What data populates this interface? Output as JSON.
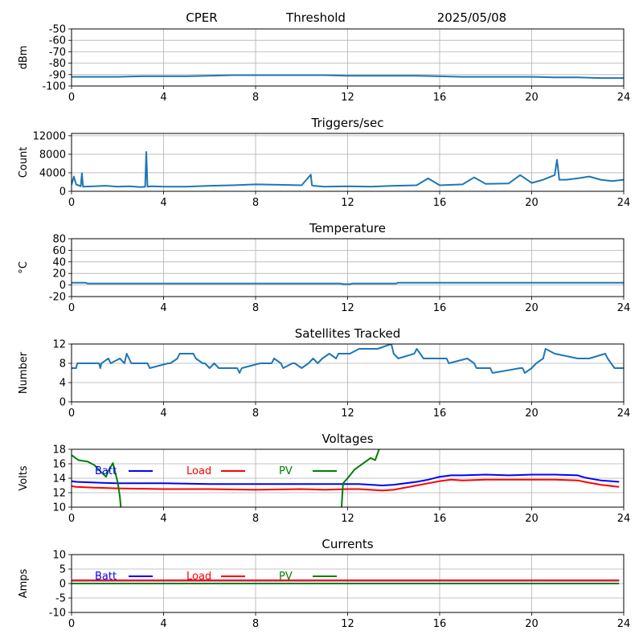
{
  "header": {
    "site": "CPER",
    "mode": "Threshold",
    "date": "2025/05/08"
  },
  "x_ticks": [
    "0",
    "4",
    "8",
    "12",
    "16",
    "20",
    "24"
  ],
  "chart_data": [
    {
      "type": "line",
      "id": "threshold",
      "title": "",
      "xlabel": "",
      "ylabel": "dBm",
      "xlim": [
        0,
        24
      ],
      "ylim": [
        -100,
        -50
      ],
      "grid": true,
      "yticks": [
        -50,
        -60,
        -70,
        -80,
        -90,
        -100
      ],
      "series": [
        {
          "color": "#1f77b4",
          "x": [
            0,
            1,
            2,
            3,
            4,
            5,
            6,
            7,
            8,
            9,
            10,
            11,
            12,
            13,
            14,
            15,
            16,
            17,
            18,
            19,
            20,
            21,
            22,
            23,
            24
          ],
          "y": [
            -92,
            -92,
            -92,
            -91.5,
            -91.5,
            -91.5,
            -91,
            -90.5,
            -90.5,
            -90.5,
            -90.5,
            -90.5,
            -91,
            -91,
            -91,
            -91,
            -91.5,
            -92,
            -92,
            -92,
            -92,
            -92.5,
            -92.5,
            -93,
            -93
          ]
        }
      ]
    },
    {
      "type": "line",
      "id": "triggers",
      "title": "Triggers/sec",
      "xlabel": "",
      "ylabel": "Count",
      "xlim": [
        0,
        24
      ],
      "ylim": [
        0,
        12500
      ],
      "grid": true,
      "yticks": [
        0,
        4000,
        8000,
        12000
      ],
      "series": [
        {
          "color": "#1f77b4",
          "x": [
            0,
            0.1,
            0.2,
            0.4,
            0.45,
            0.5,
            1,
            1.5,
            2,
            2.5,
            3,
            3.2,
            3.25,
            3.3,
            3.5,
            4,
            5,
            6,
            7,
            8,
            9,
            10,
            10.4,
            10.45,
            10.5,
            11,
            12,
            13,
            14,
            15,
            15.5,
            16,
            17,
            17.5,
            18,
            19,
            19.5,
            20,
            20.5,
            21,
            21.1,
            21.2,
            21.5,
            22,
            22.5,
            23,
            23.5,
            24
          ],
          "y": [
            1400,
            3200,
            1500,
            1100,
            3900,
            1000,
            1100,
            1200,
            1000,
            1100,
            900,
            1000,
            8500,
            1000,
            1100,
            1000,
            1000,
            1200,
            1300,
            1500,
            1400,
            1300,
            3600,
            1300,
            1200,
            1000,
            1100,
            1000,
            1200,
            1300,
            2800,
            1300,
            1500,
            3000,
            1600,
            1700,
            3500,
            1800,
            2500,
            3500,
            6800,
            2500,
            2500,
            2800,
            3200,
            2500,
            2200,
            2500
          ]
        }
      ]
    },
    {
      "type": "line",
      "id": "temperature",
      "title": "Temperature",
      "xlabel": "",
      "ylabel": "°C",
      "xlim": [
        0,
        24
      ],
      "ylim": [
        -20,
        80
      ],
      "grid": true,
      "yticks": [
        -20,
        0,
        20,
        40,
        60,
        80
      ],
      "series": [
        {
          "color": "#1f77b4",
          "x": [
            0,
            0.6,
            0.7,
            11.7,
            11.8,
            12.1,
            12.2,
            14.1,
            14.2,
            24
          ],
          "y": [
            4,
            4,
            2.5,
            2.5,
            1.5,
            1.5,
            2.5,
            2.5,
            4,
            4
          ]
        }
      ]
    },
    {
      "type": "line",
      "id": "satellites",
      "title": "Satellites Tracked",
      "xlabel": "",
      "ylabel": "Number",
      "xlim": [
        0,
        24
      ],
      "ylim": [
        0,
        12
      ],
      "grid": true,
      "yticks": [
        0,
        4,
        8,
        12
      ],
      "series": [
        {
          "color": "#1f77b4",
          "x": [
            0,
            0.2,
            0.25,
            1.2,
            1.25,
            1.3,
            1.6,
            1.7,
            2.1,
            2.3,
            2.4,
            2.6,
            3.3,
            3.4,
            4.2,
            4.3,
            4.6,
            4.7,
            5.3,
            5.4,
            5.7,
            5.8,
            6,
            6.2,
            6.4,
            7.2,
            7.3,
            7.4,
            8.2,
            8.7,
            8.8,
            9.1,
            9.2,
            9.6,
            9.7,
            10,
            10.3,
            10.5,
            10.7,
            10.9,
            11.2,
            11.5,
            11.6,
            12.1,
            12.5,
            13.3,
            13.9,
            14,
            14.2,
            14.9,
            15,
            15.3,
            16.3,
            16.4,
            17.2,
            17.5,
            17.6,
            18.2,
            18.3,
            19.5,
            19.6,
            19.7,
            20,
            20.2,
            20.5,
            20.6,
            21,
            22,
            22.5,
            23.2,
            23.3,
            23.6,
            24
          ],
          "y": [
            7,
            7,
            8,
            8,
            7,
            8,
            9,
            8,
            9,
            8,
            10,
            8,
            8,
            7,
            8,
            8,
            9,
            10,
            10,
            9,
            8,
            8,
            7,
            8,
            7,
            7,
            6,
            7,
            8,
            8,
            9,
            8,
            7,
            8,
            8,
            7,
            8,
            9,
            8,
            9,
            10,
            9,
            10,
            10,
            11,
            11,
            12,
            10,
            9,
            10,
            11,
            9,
            9,
            8,
            9,
            8,
            7,
            7,
            6,
            7,
            7,
            6,
            7,
            8,
            9,
            11,
            10,
            9,
            9,
            10,
            9,
            7,
            7
          ]
        }
      ]
    },
    {
      "type": "line",
      "id": "voltages",
      "title": "Voltages",
      "xlabel": "",
      "ylabel": "Volts",
      "xlim": [
        0,
        24
      ],
      "ylim": [
        10,
        18
      ],
      "grid": true,
      "yticks": [
        10,
        12,
        14,
        16,
        18
      ],
      "legend": [
        "Batt",
        "Load",
        "PV"
      ],
      "series": [
        {
          "name": "Batt",
          "color": "#0000ff",
          "x": [
            0,
            0.2,
            1,
            2,
            4,
            6,
            8,
            10,
            11,
            12,
            12.5,
            13,
            13.5,
            14,
            15,
            15.5,
            16,
            16.5,
            17,
            18,
            19,
            20,
            21,
            22,
            22.3,
            23,
            23.8
          ],
          "y": [
            13.6,
            13.5,
            13.4,
            13.3,
            13.3,
            13.2,
            13.2,
            13.2,
            13.2,
            13.2,
            13.2,
            13.1,
            13.0,
            13.1,
            13.5,
            13.8,
            14.2,
            14.4,
            14.4,
            14.5,
            14.4,
            14.5,
            14.5,
            14.4,
            14.1,
            13.7,
            13.5
          ]
        },
        {
          "name": "Load",
          "color": "#ff0000",
          "x": [
            0,
            0.2,
            1,
            2,
            4,
            6,
            8,
            10,
            11,
            12,
            12.5,
            13,
            13.5,
            14,
            15,
            15.5,
            16,
            16.5,
            17,
            18,
            19,
            20,
            21,
            22,
            22.3,
            23,
            23.8
          ],
          "y": [
            12.9,
            12.8,
            12.7,
            12.6,
            12.5,
            12.5,
            12.4,
            12.5,
            12.4,
            12.5,
            12.5,
            12.4,
            12.3,
            12.4,
            13.0,
            13.3,
            13.6,
            13.8,
            13.7,
            13.8,
            13.8,
            13.8,
            13.8,
            13.7,
            13.5,
            13.1,
            12.8
          ]
        },
        {
          "name": "PV",
          "color": "#008000",
          "x": [
            0,
            0.3,
            0.7,
            1,
            1.3,
            1.5,
            1.6,
            1.8,
            2,
            2.1,
            2.2,
            11.7,
            11.8,
            12,
            12.3,
            12.7,
            13,
            13.2,
            13.4
          ],
          "y": [
            17.2,
            16.5,
            16.3,
            15.8,
            14.8,
            14.2,
            15.0,
            16.1,
            13.5,
            11.5,
            8.0,
            8.0,
            13.3,
            14.0,
            15.2,
            16.1,
            16.8,
            16.5,
            18.3
          ]
        }
      ]
    },
    {
      "type": "line",
      "id": "currents",
      "title": "Currents",
      "xlabel": "",
      "ylabel": "Amps",
      "xlim": [
        0,
        24
      ],
      "ylim": [
        -10,
        10
      ],
      "grid": true,
      "yticks": [
        -10,
        -5,
        0,
        5,
        10
      ],
      "legend": [
        "Batt",
        "Load",
        "PV"
      ],
      "series": [
        {
          "name": "Batt",
          "color": "#0000ff",
          "x": [
            0,
            23.8
          ],
          "y": [
            1.0,
            1.0
          ]
        },
        {
          "name": "Load",
          "color": "#ff0000",
          "x": [
            0,
            23.8
          ],
          "y": [
            1.1,
            1.1
          ]
        },
        {
          "name": "PV",
          "color": "#008000",
          "x": [
            0,
            23.8
          ],
          "y": [
            0.0,
            0.0
          ]
        }
      ]
    }
  ]
}
